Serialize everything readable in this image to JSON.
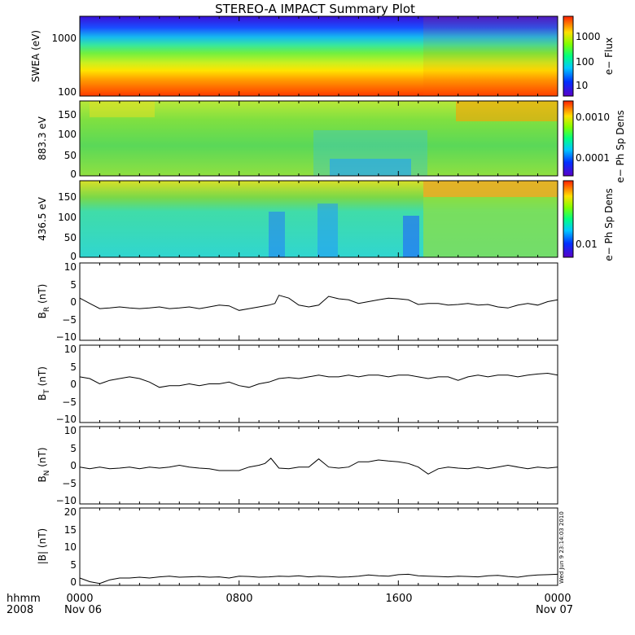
{
  "title": "STEREO-A IMPACT Summary Plot",
  "time_axis": {
    "hhmm_label": "hhmm",
    "year_label": "2008",
    "ticks": [
      {
        "t": 0,
        "top": "0000",
        "bottom": "Nov 06"
      },
      {
        "t": 8,
        "top": "0800",
        "bottom": ""
      },
      {
        "t": 16,
        "top": "1600",
        "bottom": ""
      },
      {
        "t": 24,
        "top": "0000",
        "bottom": "Nov 07"
      }
    ]
  },
  "timestamp": "Wed Jun 9 23:14:03 2010",
  "chart_data": [
    {
      "type": "heatmap",
      "ylabel": "SWEA (eV)",
      "yscale": "log",
      "ylim": [
        95,
        2000
      ],
      "yticks": [
        "100",
        "1000"
      ],
      "colorbar": {
        "label": "e− Flux",
        "scale": "log",
        "ticks": [
          "10",
          "100",
          "1000"
        ]
      },
      "description_values": {
        "low_energy_flux": "high",
        "high_energy_flux": "low"
      }
    },
    {
      "type": "heatmap",
      "ylabel": "883.3 eV",
      "ylim": [
        0,
        180
      ],
      "yticks": [
        "0",
        "50",
        "100",
        "150"
      ],
      "colorbar": {
        "label": "e− Ph Sp Dens",
        "scale": "log",
        "ticks": [
          "0.0001",
          "0.0010"
        ]
      }
    },
    {
      "type": "heatmap",
      "ylabel": "436.5 eV",
      "ylim": [
        0,
        180
      ],
      "yticks": [
        "0",
        "50",
        "100",
        "150"
      ],
      "colorbar": {
        "label": "e− Ph Sp Dens",
        "scale": "log",
        "ticks": [
          "0.01"
        ]
      }
    },
    {
      "type": "line",
      "ylabel": "B",
      "ysub": "R",
      "yunit": "(nT)",
      "ylim": [
        -11,
        11
      ],
      "yticks": [
        "10",
        "5",
        "0",
        "−5",
        "−10"
      ],
      "x": [
        0,
        0.5,
        1,
        1.5,
        2,
        2.5,
        3,
        3.5,
        4,
        4.5,
        5,
        5.5,
        6,
        6.5,
        7,
        7.5,
        8,
        8.5,
        9,
        9.5,
        9.8,
        10,
        10.5,
        11,
        11.5,
        12,
        12.5,
        13,
        13.5,
        14,
        14.5,
        15,
        15.5,
        16,
        16.5,
        17,
        17.5,
        18,
        18.5,
        19,
        19.5,
        20,
        20.5,
        21,
        21.5,
        22,
        22.5,
        23,
        23.5,
        24
      ],
      "y": [
        1,
        -0.5,
        -2,
        -1.8,
        -1.5,
        -1.8,
        -2,
        -1.8,
        -1.5,
        -2,
        -1.8,
        -1.5,
        -2,
        -1.5,
        -1,
        -1.2,
        -2.5,
        -2,
        -1.5,
        -1,
        -0.5,
        1.8,
        1,
        -1,
        -1.5,
        -1,
        1.5,
        0.8,
        0.5,
        -0.5,
        0,
        0.5,
        1,
        0.8,
        0.5,
        -0.8,
        -0.5,
        -0.5,
        -1,
        -0.8,
        -0.5,
        -1,
        -0.8,
        -1.5,
        -1.8,
        -1,
        -0.5,
        -1,
        0,
        0.5
      ]
    },
    {
      "type": "line",
      "ylabel": "B",
      "ysub": "T",
      "yunit": "(nT)",
      "ylim": [
        -11,
        11
      ],
      "yticks": [
        "10",
        "5",
        "0",
        "−5",
        "−10"
      ],
      "x": [
        0,
        0.5,
        1,
        1.5,
        2,
        2.5,
        3,
        3.5,
        4,
        4.5,
        5,
        5.5,
        6,
        6.5,
        7,
        7.5,
        8,
        8.5,
        9,
        9.5,
        10,
        10.5,
        11,
        11.5,
        12,
        12.5,
        13,
        13.5,
        14,
        14.5,
        15,
        15.5,
        16,
        16.5,
        17,
        17.5,
        18,
        18.5,
        19,
        19.5,
        20,
        20.5,
        21,
        21.5,
        22,
        22.5,
        23,
        23.5,
        24
      ],
      "y": [
        2,
        1.5,
        0,
        1,
        1.5,
        2,
        1.5,
        0.5,
        -1,
        -0.5,
        -0.5,
        0,
        -0.5,
        0,
        0,
        0.5,
        -0.5,
        -1,
        0,
        0.5,
        1.5,
        1.8,
        1.5,
        2,
        2.5,
        2,
        2,
        2.5,
        2,
        2.5,
        2.5,
        2,
        2.5,
        2.5,
        2,
        1.5,
        2,
        2,
        1,
        2,
        2.5,
        2,
        2.5,
        2.5,
        2,
        2.5,
        2.8,
        3,
        2.5
      ]
    },
    {
      "type": "line",
      "ylabel": "B",
      "ysub": "N",
      "yunit": "(nT)",
      "ylim": [
        -11,
        11
      ],
      "yticks": [
        "10",
        "5",
        "0",
        "−5",
        "−10"
      ],
      "x": [
        0,
        0.5,
        1,
        1.5,
        2,
        2.5,
        3,
        3.5,
        4,
        4.5,
        5,
        5.5,
        6,
        6.5,
        7,
        7.5,
        8,
        8.5,
        9,
        9.3,
        9.6,
        10,
        10.5,
        11,
        11.5,
        12,
        12.5,
        13,
        13.5,
        14,
        14.5,
        15,
        15.5,
        16,
        16.5,
        17,
        17.5,
        18,
        18.5,
        19,
        19.5,
        20,
        20.5,
        21,
        21.5,
        22,
        22.5,
        23,
        23.5,
        24
      ],
      "y": [
        -0.5,
        -1,
        -0.5,
        -1,
        -0.8,
        -0.5,
        -1,
        -0.5,
        -0.8,
        -0.5,
        0,
        -0.5,
        -0.8,
        -1,
        -1.5,
        -1.5,
        -1.5,
        -0.5,
        0,
        0.5,
        2,
        -0.8,
        -1,
        -0.5,
        -0.5,
        1.8,
        -0.5,
        -0.8,
        -0.5,
        1,
        1,
        1.5,
        1.2,
        1,
        0.5,
        -0.5,
        -2.5,
        -1,
        -0.5,
        -0.8,
        -1,
        -0.5,
        -1,
        -0.5,
        0,
        -0.5,
        -1,
        -0.5,
        -0.8,
        -0.5
      ]
    },
    {
      "type": "line",
      "ylabel": "|B|",
      "yunit": "(nT)",
      "ylim": [
        0,
        21
      ],
      "yticks": [
        "20",
        "15",
        "10",
        "5",
        "0"
      ],
      "x": [
        0,
        0.5,
        1,
        1.5,
        2,
        2.5,
        3,
        3.5,
        4,
        4.5,
        5,
        5.5,
        6,
        6.5,
        7,
        7.5,
        8,
        8.5,
        9,
        9.5,
        10,
        10.5,
        11,
        11.5,
        12,
        12.5,
        13,
        13.5,
        14,
        14.5,
        15,
        15.5,
        16,
        16.5,
        17,
        17.5,
        18,
        18.5,
        19,
        19.5,
        20,
        20.5,
        21,
        21.5,
        22,
        22.5,
        23,
        23.5,
        24
      ],
      "y": [
        2,
        1,
        0.5,
        1.5,
        2,
        2,
        2.2,
        2,
        2.3,
        2.5,
        2.2,
        2.3,
        2.4,
        2.2,
        2.3,
        2,
        2.5,
        2.4,
        2.2,
        2.3,
        2.5,
        2.4,
        2.6,
        2.3,
        2.5,
        2.4,
        2.2,
        2.3,
        2.5,
        2.8,
        2.6,
        2.5,
        2.9,
        3,
        2.6,
        2.5,
        2.4,
        2.3,
        2.5,
        2.4,
        2.3,
        2.6,
        2.7,
        2.4,
        2.2,
        2.6,
        2.8,
        2.9,
        3
      ]
    }
  ]
}
